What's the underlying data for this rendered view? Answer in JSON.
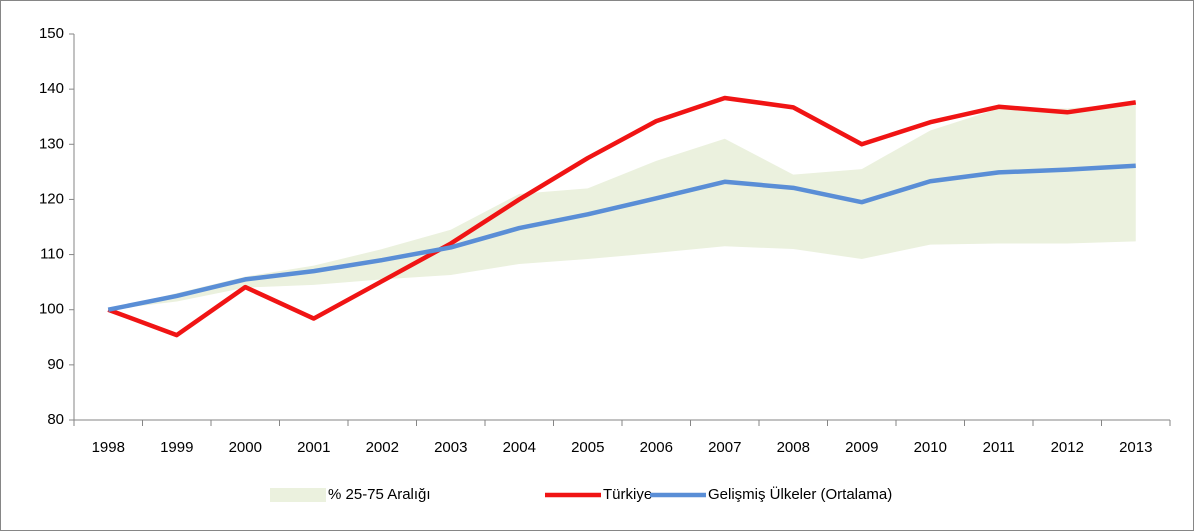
{
  "chart_data": {
    "type": "line",
    "categories": [
      "1998",
      "1999",
      "2000",
      "2001",
      "2002",
      "2003",
      "2004",
      "2005",
      "2006",
      "2007",
      "2008",
      "2009",
      "2010",
      "2011",
      "2012",
      "2013"
    ],
    "ylim": [
      80,
      150
    ],
    "yticks": [
      80,
      90,
      100,
      110,
      120,
      130,
      140,
      150
    ],
    "grid": false,
    "legend": "bottom",
    "series": [
      {
        "name": "% 25-75 Aralığı",
        "color": "#ebf1de",
        "kind": "band",
        "low": [
          100,
          101.5,
          104,
          104.5,
          105.5,
          106.3,
          108.3,
          109.2,
          110.3,
          111.5,
          111,
          109.2,
          111.8,
          112,
          112,
          112.4
        ],
        "high": [
          100,
          103,
          106,
          108,
          111,
          114.5,
          121,
          122,
          127,
          131,
          124.5,
          125.5,
          132.5,
          136.5,
          136.5,
          137.5
        ]
      },
      {
        "name": "Türkiye",
        "color": "#f01414",
        "values": [
          100,
          95.4,
          104.1,
          98.4,
          105.2,
          112,
          120,
          127.5,
          134.2,
          138.4,
          136.7,
          130,
          134,
          136.8,
          135.8,
          137.6
        ]
      },
      {
        "name": "Gelişmiş Ülkeler (Ortalama)",
        "color": "#5a8ed6",
        "values": [
          100,
          102.5,
          105.5,
          107,
          109,
          111.3,
          114.8,
          117.3,
          120.2,
          123.2,
          122.1,
          119.5,
          123.3,
          124.9,
          125.4,
          126.1
        ]
      }
    ]
  }
}
